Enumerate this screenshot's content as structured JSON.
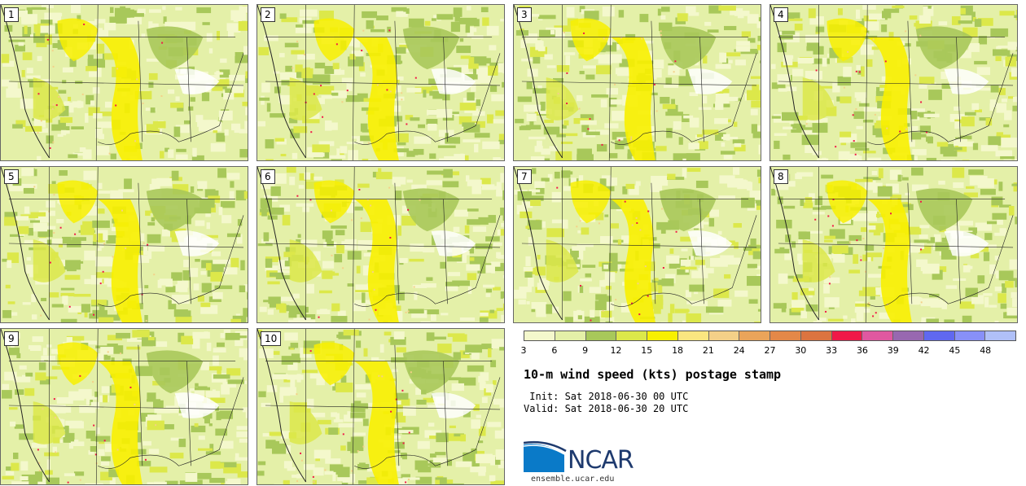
{
  "panels": [
    {
      "label": "1"
    },
    {
      "label": "2"
    },
    {
      "label": "3"
    },
    {
      "label": "4"
    },
    {
      "label": "5"
    },
    {
      "label": "6"
    },
    {
      "label": "7"
    },
    {
      "label": "8"
    },
    {
      "label": "9"
    },
    {
      "label": "10"
    }
  ],
  "colorbar": {
    "colors": [
      "#f4f8cc",
      "#e4f0a8",
      "#a8c85a",
      "#dce84a",
      "#f8f000",
      "#fae680",
      "#f4d088",
      "#eaa45a",
      "#e48848",
      "#dc7440",
      "#f01848",
      "#e058a0",
      "#9868b0",
      "#6068f0",
      "#8890f8",
      "#b0c0f8"
    ],
    "ticks": [
      "3",
      "6",
      "9",
      "12",
      "15",
      "18",
      "21",
      "24",
      "27",
      "30",
      "33",
      "36",
      "39",
      "42",
      "45",
      "48"
    ]
  },
  "title": "10-m wind speed (kts) postage stamp",
  "init": " Init: Sat 2018-06-30 00 UTC",
  "valid": "Valid: Sat 2018-06-30 20 UTC",
  "logo": {
    "text": "NCAR",
    "site": "ensemble.ucar.edu",
    "brand_color": "#1e3a6e",
    "accent_color": "#0a7ac8"
  }
}
